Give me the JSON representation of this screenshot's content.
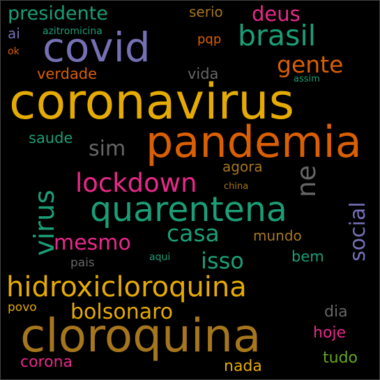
{
  "palette": {
    "green": "#1b9e77",
    "orange": "#d95f02",
    "purple": "#7570b3",
    "pink": "#e7298a",
    "lime": "#66a61e",
    "gold": "#e6ab02",
    "brown": "#a6761d",
    "gray": "#666666"
  },
  "words": [
    {
      "text": "coronavirus",
      "color": "#e6ab02"
    },
    {
      "text": "cloroquina",
      "color": "#a6761d"
    },
    {
      "text": "pandemia",
      "color": "#d95f02"
    },
    {
      "text": "covid",
      "color": "#7570b3"
    },
    {
      "text": "quarentena",
      "color": "#1b9e77"
    },
    {
      "text": "hidroxicloroquina",
      "color": "#e6ab02"
    },
    {
      "text": "brasil",
      "color": "#1b9e77"
    },
    {
      "text": "lockdown",
      "color": "#e7298a"
    },
    {
      "text": "virus",
      "color": "#1b9e77"
    },
    {
      "text": "presidente",
      "color": "#1b9e77"
    },
    {
      "text": "bolsonaro",
      "color": "#e6ab02"
    },
    {
      "text": "casa",
      "color": "#1b9e77"
    },
    {
      "text": "social",
      "color": "#7570b3"
    },
    {
      "text": "mesmo",
      "color": "#e7298a"
    },
    {
      "text": "isso",
      "color": "#1b9e77"
    },
    {
      "text": "gente",
      "color": "#d95f02"
    },
    {
      "text": "deus",
      "color": "#e7298a"
    },
    {
      "text": "sim",
      "color": "#666666"
    },
    {
      "text": "ne",
      "color": "#666666"
    },
    {
      "text": "verdade",
      "color": "#d95f02"
    },
    {
      "text": "vida",
      "color": "#666666"
    },
    {
      "text": "saude",
      "color": "#1b9e77"
    },
    {
      "text": "agora",
      "color": "#a6761d"
    },
    {
      "text": "mundo",
      "color": "#a6761d"
    },
    {
      "text": "bem",
      "color": "#1b9e77"
    },
    {
      "text": "corona",
      "color": "#e7298a"
    },
    {
      "text": "nada",
      "color": "#e6ab02"
    },
    {
      "text": "tudo",
      "color": "#66a61e"
    },
    {
      "text": "hoje",
      "color": "#e7298a"
    },
    {
      "text": "dia",
      "color": "#666666"
    },
    {
      "text": "serio",
      "color": "#a6761d"
    },
    {
      "text": "pqp",
      "color": "#d95f02"
    },
    {
      "text": "ai",
      "color": "#7570b3"
    },
    {
      "text": "azitromicina",
      "color": "#1b9e77"
    },
    {
      "text": "pais",
      "color": "#666666"
    },
    {
      "text": "povo",
      "color": "#e6ab02"
    },
    {
      "text": "assim",
      "color": "#1b9e77"
    },
    {
      "text": "aqui",
      "color": "#1b9e77"
    },
    {
      "text": "china",
      "color": "#a6761d"
    },
    {
      "text": "ok",
      "color": "#d95f02"
    }
  ]
}
